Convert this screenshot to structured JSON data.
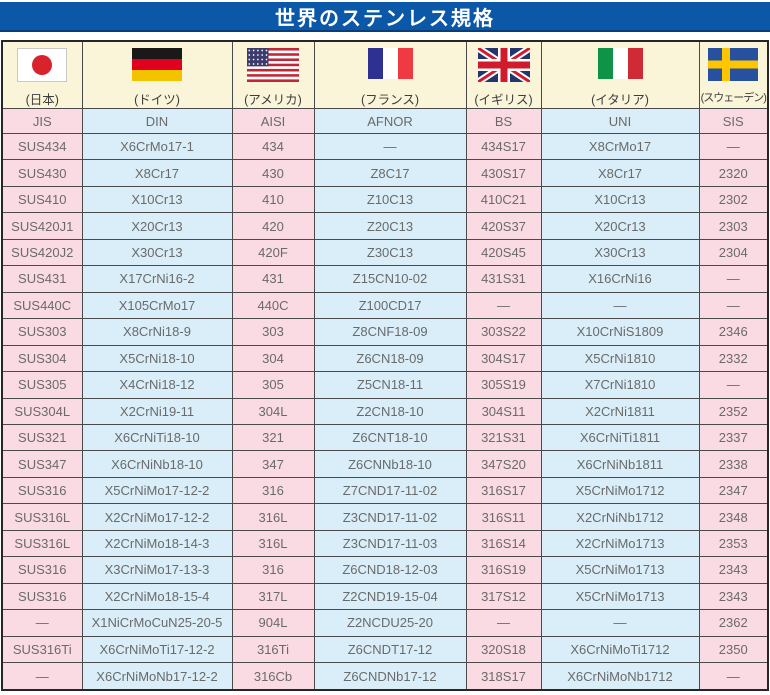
{
  "title": "世界のステンレス規格",
  "colors": {
    "title_bar": "#0b57a8",
    "title_bar_edge": "#083d7a",
    "column_pink": "#fadbe4",
    "column_blue": "#d9eef8",
    "flag_row_cream": "#faf4d8"
  },
  "countries": [
    {
      "id": "japan",
      "label": "(日本)",
      "standard": "JIS"
    },
    {
      "id": "germany",
      "label": "(ドイツ)",
      "standard": "DIN"
    },
    {
      "id": "usa",
      "label": "(アメリカ)",
      "standard": "AISI"
    },
    {
      "id": "france",
      "label": "(フランス)",
      "standard": "AFNOR"
    },
    {
      "id": "uk",
      "label": "(イギリス)",
      "standard": "BS"
    },
    {
      "id": "italy",
      "label": "(イタリア)",
      "standard": "UNI"
    },
    {
      "id": "sweden",
      "label": "(スウェーデン)",
      "standard": "SIS"
    }
  ],
  "rows": [
    [
      "SUS434",
      "X6CrMo17-1",
      "434",
      "—",
      "434S17",
      "X8CrMo17",
      "—"
    ],
    [
      "SUS430",
      "X8Cr17",
      "430",
      "Z8C17",
      "430S17",
      "X8Cr17",
      "2320"
    ],
    [
      "SUS410",
      "X10Cr13",
      "410",
      "Z10C13",
      "410C21",
      "X10Cr13",
      "2302"
    ],
    [
      "SUS420J1",
      "X20Cr13",
      "420",
      "Z20C13",
      "420S37",
      "X20Cr13",
      "2303"
    ],
    [
      "SUS420J2",
      "X30Cr13",
      "420F",
      "Z30C13",
      "420S45",
      "X30Cr13",
      "2304"
    ],
    [
      "SUS431",
      "X17CrNi16-2",
      "431",
      "Z15CN10-02",
      "431S31",
      "X16CrNi16",
      "—"
    ],
    [
      "SUS440C",
      "X105CrMo17",
      "440C",
      "Z100CD17",
      "—",
      "—",
      "—"
    ],
    [
      "SUS303",
      "X8CrNi18-9",
      "303",
      "Z8CNF18-09",
      "303S22",
      "X10CrNiS1809",
      "2346"
    ],
    [
      "SUS304",
      "X5CrNi18-10",
      "304",
      "Z6CN18-09",
      "304S17",
      "X5CrNi1810",
      "2332"
    ],
    [
      "SUS305",
      "X4CrNi18-12",
      "305",
      "Z5CN18-11",
      "305S19",
      "X7CrNi1810",
      "—"
    ],
    [
      "SUS304L",
      "X2CrNi19-11",
      "304L",
      "Z2CN18-10",
      "304S11",
      "X2CrNi1811",
      "2352"
    ],
    [
      "SUS321",
      "X6CrNiTi18-10",
      "321",
      "Z6CNT18-10",
      "321S31",
      "X6CrNiTi1811",
      "2337"
    ],
    [
      "SUS347",
      "X6CrNiNb18-10",
      "347",
      "Z6CNNb18-10",
      "347S20",
      "X6CrNiNb1811",
      "2338"
    ],
    [
      "SUS316",
      "X5CrNiMo17-12-2",
      "316",
      "Z7CND17-11-02",
      "316S17",
      "X5CrNiMo1712",
      "2347"
    ],
    [
      "SUS316L",
      "X2CrNiMo17-12-2",
      "316L",
      "Z3CND17-11-02",
      "316S11",
      "X2CrNiNb1712",
      "2348"
    ],
    [
      "SUS316L",
      "X2CrNiMo18-14-3",
      "316L",
      "Z3CND17-11-03",
      "316S14",
      "X2CrNiMo1713",
      "2353"
    ],
    [
      "SUS316",
      "X3CrNiMo17-13-3",
      "316",
      "Z6CND18-12-03",
      "316S19",
      "X5CrNiMo1713",
      "2343"
    ],
    [
      "SUS316",
      "X2CrNiMo18-15-4",
      "317L",
      "Z2CND19-15-04",
      "317S12",
      "X5CrNiMo1713",
      "2343"
    ],
    [
      "—",
      "X1NiCrMoCuN25-20-5",
      "904L",
      "Z2NCDU25-20",
      "—",
      "—",
      "2362"
    ],
    [
      "SUS316Ti",
      "X6CrNiMoTi17-12-2",
      "316Ti",
      "Z6CNDT17-12",
      "320S18",
      "X6CrNiMoTi1712",
      "2350"
    ],
    [
      "—",
      "X6CrNiMoNb17-12-2",
      "316Cb",
      "Z6CNDNb17-12",
      "318S17",
      "X6CrNiMoNb1712",
      "—"
    ]
  ]
}
